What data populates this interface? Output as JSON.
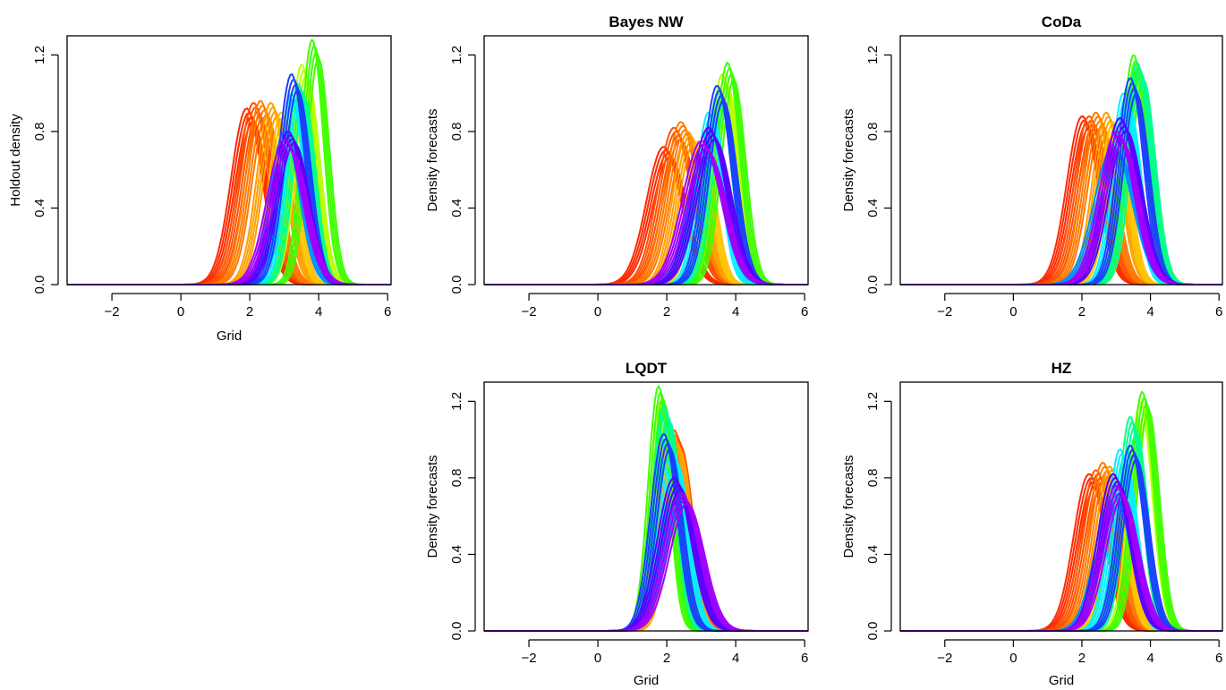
{
  "chart_data": [
    {
      "id": "holdout",
      "type": "line",
      "title": "",
      "xlabel": "Grid",
      "ylabel": "Holdout density",
      "xlim": [
        -3.3,
        6.1
      ],
      "ylim": [
        0,
        1.3
      ],
      "xticks": [
        "−2",
        "0",
        "2",
        "4",
        "6"
      ],
      "xtick_values": [
        -2,
        0,
        2,
        4,
        6
      ],
      "yticks": [
        "0.0",
        "0.4",
        "0.8",
        "1.2"
      ],
      "ytick_values": [
        0,
        0.4,
        0.8,
        1.2
      ],
      "grid": false,
      "series": [
        {
          "color": "#ff2a00",
          "mean": 2.0,
          "sd": 0.45,
          "peak": 0.92
        },
        {
          "color": "#ff5200",
          "mean": 2.2,
          "sd": 0.44,
          "peak": 0.95
        },
        {
          "color": "#ff7a00",
          "mean": 2.4,
          "sd": 0.42,
          "peak": 0.96
        },
        {
          "color": "#ffa000",
          "mean": 2.7,
          "sd": 0.4,
          "peak": 0.95
        },
        {
          "color": "#ffc400",
          "mean": 3.0,
          "sd": 0.35,
          "peak": 0.9
        },
        {
          "color": "#b8ff00",
          "mean": 3.6,
          "sd": 0.35,
          "peak": 1.15
        },
        {
          "color": "#40ff00",
          "mean": 3.9,
          "sd": 0.32,
          "peak": 1.28
        },
        {
          "color": "#00ff90",
          "mean": 3.5,
          "sd": 0.33,
          "peak": 1.05
        },
        {
          "color": "#00f0ff",
          "mean": 3.3,
          "sd": 0.33,
          "peak": 1.0
        },
        {
          "color": "#0090ff",
          "mean": 3.1,
          "sd": 0.42,
          "peak": 0.8
        },
        {
          "color": "#1a40ff",
          "mean": 3.3,
          "sd": 0.38,
          "peak": 1.1
        },
        {
          "color": "#5a00ff",
          "mean": 3.2,
          "sd": 0.45,
          "peak": 0.8
        },
        {
          "color": "#a000ff",
          "mean": 3.1,
          "sd": 0.5,
          "peak": 0.76
        }
      ]
    },
    {
      "id": "bayes",
      "type": "line",
      "title": "Bayes NW",
      "xlabel": "",
      "ylabel": "Density forecasts",
      "xlim": [
        -3.3,
        6.1
      ],
      "ylim": [
        0,
        1.3
      ],
      "xticks": [
        "−2",
        "0",
        "2",
        "4",
        "6"
      ],
      "xtick_values": [
        -2,
        0,
        2,
        4,
        6
      ],
      "yticks": [
        "0.0",
        "0.4",
        "0.8",
        "1.2"
      ],
      "ytick_values": [
        0,
        0.4,
        0.8,
        1.2
      ],
      "grid": false,
      "series": [
        {
          "color": "#ff2a00",
          "mean": 2.0,
          "sd": 0.5,
          "peak": 0.72
        },
        {
          "color": "#ff5200",
          "mean": 2.3,
          "sd": 0.48,
          "peak": 0.82
        },
        {
          "color": "#ff7a00",
          "mean": 2.5,
          "sd": 0.46,
          "peak": 0.85
        },
        {
          "color": "#ffa000",
          "mean": 2.7,
          "sd": 0.42,
          "peak": 0.8
        },
        {
          "color": "#ffc400",
          "mean": 3.0,
          "sd": 0.35,
          "peak": 0.75
        },
        {
          "color": "#b8ff00",
          "mean": 3.7,
          "sd": 0.36,
          "peak": 1.1
        },
        {
          "color": "#40ff00",
          "mean": 3.85,
          "sd": 0.35,
          "peak": 1.16
        },
        {
          "color": "#00ff90",
          "mean": 3.6,
          "sd": 0.36,
          "peak": 1.0
        },
        {
          "color": "#00f0ff",
          "mean": 3.3,
          "sd": 0.35,
          "peak": 0.9
        },
        {
          "color": "#0090ff",
          "mean": 3.2,
          "sd": 0.5,
          "peak": 0.7
        },
        {
          "color": "#1a40ff",
          "mean": 3.55,
          "sd": 0.4,
          "peak": 1.04
        },
        {
          "color": "#5a00ff",
          "mean": 3.3,
          "sd": 0.5,
          "peak": 0.82
        },
        {
          "color": "#a000ff",
          "mean": 3.1,
          "sd": 0.55,
          "peak": 0.75
        }
      ]
    },
    {
      "id": "coda",
      "type": "line",
      "title": "CoDa",
      "xlabel": "",
      "ylabel": "Density forecasts",
      "xlim": [
        -3.3,
        6.1
      ],
      "ylim": [
        0,
        1.3
      ],
      "xticks": [
        "−2",
        "0",
        "2",
        "4",
        "6"
      ],
      "xtick_values": [
        -2,
        0,
        2,
        4,
        6
      ],
      "yticks": [
        "0.0",
        "0.4",
        "0.8",
        "1.2"
      ],
      "ytick_values": [
        0,
        0.4,
        0.8,
        1.2
      ],
      "grid": false,
      "series": [
        {
          "color": "#ff2a00",
          "mean": 2.1,
          "sd": 0.45,
          "peak": 0.88
        },
        {
          "color": "#ff5200",
          "mean": 2.3,
          "sd": 0.44,
          "peak": 0.88
        },
        {
          "color": "#ff7a00",
          "mean": 2.5,
          "sd": 0.42,
          "peak": 0.9
        },
        {
          "color": "#ffa000",
          "mean": 2.8,
          "sd": 0.4,
          "peak": 0.9
        },
        {
          "color": "#ffc400",
          "mean": 3.0,
          "sd": 0.35,
          "peak": 0.85
        },
        {
          "color": "#b8ff00",
          "mean": 3.7,
          "sd": 0.36,
          "peak": 1.12
        },
        {
          "color": "#40ff00",
          "mean": 3.6,
          "sd": 0.35,
          "peak": 1.2
        },
        {
          "color": "#00ff90",
          "mean": 3.7,
          "sd": 0.36,
          "peak": 1.16
        },
        {
          "color": "#00f0ff",
          "mean": 3.3,
          "sd": 0.35,
          "peak": 1.0
        },
        {
          "color": "#0090ff",
          "mean": 3.0,
          "sd": 0.55,
          "peak": 0.72
        },
        {
          "color": "#1a40ff",
          "mean": 3.5,
          "sd": 0.38,
          "peak": 1.08
        },
        {
          "color": "#5a00ff",
          "mean": 3.2,
          "sd": 0.48,
          "peak": 0.87
        },
        {
          "color": "#a000ff",
          "mean": 3.1,
          "sd": 0.5,
          "peak": 0.8
        }
      ]
    },
    {
      "id": "lqdt",
      "type": "line",
      "title": "LQDT",
      "xlabel": "Grid",
      "ylabel": "Density forecasts",
      "xlim": [
        -3.3,
        6.1
      ],
      "ylim": [
        0,
        1.3
      ],
      "xticks": [
        "−2",
        "0",
        "2",
        "4",
        "6"
      ],
      "xtick_values": [
        -2,
        0,
        2,
        4,
        6
      ],
      "yticks": [
        "0.0",
        "0.4",
        "0.8",
        "1.2"
      ],
      "ytick_values": [
        0,
        0.4,
        0.8,
        1.2
      ],
      "grid": false,
      "series": [
        {
          "color": "#ff2a00",
          "mean": 2.2,
          "sd": 0.4,
          "peak": 1.0
        },
        {
          "color": "#ff5200",
          "mean": 2.3,
          "sd": 0.38,
          "peak": 1.05
        },
        {
          "color": "#ff7a00",
          "mean": 2.2,
          "sd": 0.36,
          "peak": 1.06
        },
        {
          "color": "#ffa000",
          "mean": 2.3,
          "sd": 0.35,
          "peak": 1.02
        },
        {
          "color": "#ffc400",
          "mean": 2.1,
          "sd": 0.33,
          "peak": 1.0
        },
        {
          "color": "#b8ff00",
          "mean": 1.9,
          "sd": 0.3,
          "peak": 1.2
        },
        {
          "color": "#40ff00",
          "mean": 1.85,
          "sd": 0.3,
          "peak": 1.28
        },
        {
          "color": "#00ff90",
          "mean": 2.0,
          "sd": 0.32,
          "peak": 1.18
        },
        {
          "color": "#00f0ff",
          "mean": 2.2,
          "sd": 0.38,
          "peak": 0.95
        },
        {
          "color": "#0090ff",
          "mean": 2.4,
          "sd": 0.5,
          "peak": 0.75
        },
        {
          "color": "#1a40ff",
          "mean": 2.0,
          "sd": 0.38,
          "peak": 1.03
        },
        {
          "color": "#5a00ff",
          "mean": 2.3,
          "sd": 0.48,
          "peak": 0.8
        },
        {
          "color": "#a000ff",
          "mean": 2.5,
          "sd": 0.5,
          "peak": 0.72
        }
      ]
    },
    {
      "id": "hz",
      "type": "line",
      "title": "HZ",
      "xlabel": "Grid",
      "ylabel": "Density forecasts",
      "xlim": [
        -3.3,
        6.1
      ],
      "ylim": [
        0,
        1.3
      ],
      "xticks": [
        "−2",
        "0",
        "2",
        "4",
        "6"
      ],
      "xtick_values": [
        -2,
        0,
        2,
        4,
        6
      ],
      "yticks": [
        "0.0",
        "0.4",
        "0.8",
        "1.2"
      ],
      "ytick_values": [
        0,
        0.4,
        0.8,
        1.2
      ],
      "grid": false,
      "series": [
        {
          "color": "#ff2a00",
          "mean": 2.3,
          "sd": 0.45,
          "peak": 0.82
        },
        {
          "color": "#ff5200",
          "mean": 2.5,
          "sd": 0.44,
          "peak": 0.84
        },
        {
          "color": "#ff7a00",
          "mean": 2.7,
          "sd": 0.42,
          "peak": 0.88
        },
        {
          "color": "#ffa000",
          "mean": 2.9,
          "sd": 0.4,
          "peak": 0.86
        },
        {
          "color": "#ffc400",
          "mean": 3.0,
          "sd": 0.35,
          "peak": 0.8
        },
        {
          "color": "#b8ff00",
          "mean": 3.8,
          "sd": 0.34,
          "peak": 1.2
        },
        {
          "color": "#40ff00",
          "mean": 3.85,
          "sd": 0.33,
          "peak": 1.25
        },
        {
          "color": "#00ff90",
          "mean": 3.5,
          "sd": 0.34,
          "peak": 1.12
        },
        {
          "color": "#00f0ff",
          "mean": 3.2,
          "sd": 0.35,
          "peak": 0.95
        },
        {
          "color": "#0090ff",
          "mean": 3.0,
          "sd": 0.5,
          "peak": 0.72
        },
        {
          "color": "#1a40ff",
          "mean": 3.5,
          "sd": 0.38,
          "peak": 0.97
        },
        {
          "color": "#5a00ff",
          "mean": 3.0,
          "sd": 0.45,
          "peak": 0.82
        },
        {
          "color": "#a000ff",
          "mean": 3.1,
          "sd": 0.48,
          "peak": 0.76
        }
      ]
    }
  ]
}
